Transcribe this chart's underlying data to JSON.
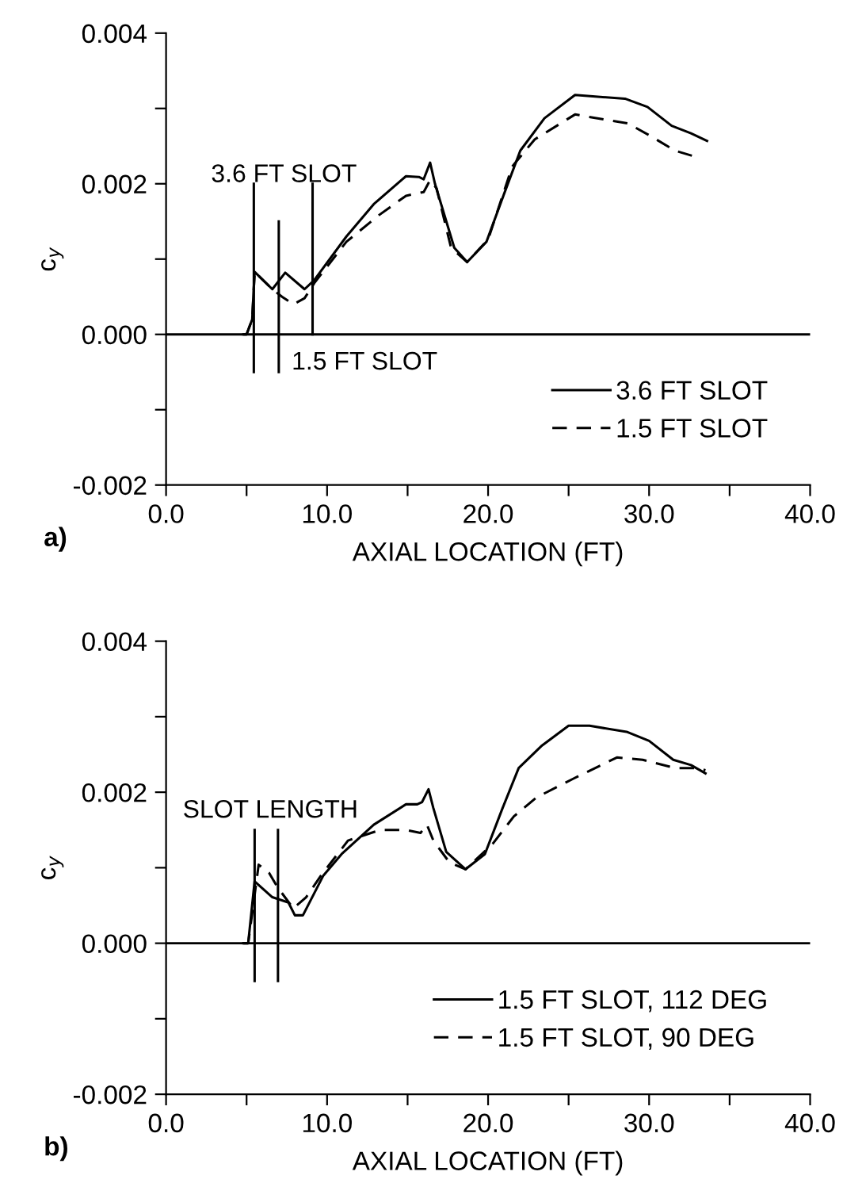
{
  "chart_data": [
    {
      "type": "line",
      "xlabel": "AXIAL LOCATION (FT)",
      "ylabel": "c$_{y}$",
      "xlim": [
        0,
        40
      ],
      "ylim": [
        -0.002,
        0.004
      ],
      "xticks": [
        {
          "value": 0,
          "label": "0.0"
        },
        {
          "value": 5,
          "label": null
        },
        {
          "value": 10,
          "label": "10.0"
        },
        {
          "value": 15,
          "label": null
        },
        {
          "value": 20,
          "label": "20.0"
        },
        {
          "value": 25,
          "label": null
        },
        {
          "value": 30,
          "label": "30.0"
        },
        {
          "value": 35,
          "label": null
        },
        {
          "value": 40,
          "label": "40.0"
        }
      ],
      "yticks": [
        {
          "value": -0.002,
          "label": "-0.002"
        },
        {
          "value": -0.001,
          "label": null
        },
        {
          "value": 0,
          "label": "0.000"
        },
        {
          "value": 0.001,
          "label": null
        },
        {
          "value": 0.002,
          "label": "0.002"
        },
        {
          "value": 0.003,
          "label": null
        },
        {
          "value": 0.004,
          "label": "0.004"
        }
      ],
      "legend": "bottom right",
      "grid": false,
      "ref_lines": [
        {
          "axis": "y",
          "value": 0,
          "label": null,
          "color": "#000000"
        }
      ],
      "series": [
        {
          "name": "3.6 FT SLOT",
          "color": "#000000",
          "line_style": "solid",
          "x": [
            4.8,
            5.0,
            5.35,
            5.5,
            6.6,
            7.4,
            8.6,
            9.2,
            11.2,
            12.9,
            14.9,
            15.7,
            16.0,
            16.4,
            16.7,
            17.9,
            18.7,
            19.9,
            21.0,
            22.0,
            23.5,
            25.4,
            26.5,
            28.5,
            29.9,
            31.4,
            32.6,
            33.6
          ],
          "values": [
            0,
            0,
            0.0002,
            0.00083,
            0.0006,
            0.00082,
            0.0006,
            0.00072,
            0.0013,
            0.00173,
            0.0021,
            0.00209,
            0.00206,
            0.00228,
            0.002,
            0.00115,
            0.00096,
            0.00123,
            0.00187,
            0.00244,
            0.00287,
            0.00318,
            0.00316,
            0.00313,
            0.00302,
            0.00277,
            0.00267,
            0.00257
          ]
        },
        {
          "name": "1.5 FT SLOT",
          "color": "#000000",
          "line_style": "dashed",
          "x": [
            4.8,
            5.0,
            5.35,
            5.5,
            6.6,
            7.2,
            7.9,
            8.6,
            9.2,
            11.2,
            13.2,
            14.9,
            16.0,
            16.4,
            16.8,
            17.7,
            18.7,
            20.0,
            21.5,
            22.9,
            25.4,
            27.6,
            28.7,
            30.2,
            31.6,
            32.7
          ],
          "values": [
            0,
            0,
            0.0002,
            0.00083,
            0.0006,
            0.0005,
            0.0004,
            0.00048,
            0.00068,
            0.00123,
            0.00158,
            0.00184,
            0.00189,
            0.00205,
            0.00194,
            0.00115,
            0.00096,
            0.00126,
            0.00223,
            0.00259,
            0.00292,
            0.00284,
            0.0028,
            0.00262,
            0.00244,
            0.00237
          ]
        },
        {
          "color": "#000000",
          "line_style": "solid",
          "x": [
            5.45,
            5.45
          ],
          "values": [
            -0.0005,
            0.002
          ]
        },
        {
          "color": "#000000",
          "line_style": "solid",
          "x": [
            7.0,
            7.0
          ],
          "values": [
            -0.0005,
            0.0015
          ]
        },
        {
          "color": "#000000",
          "line_style": "solid",
          "x": [
            9.1,
            9.1
          ],
          "values": [
            0,
            0.002
          ]
        }
      ],
      "annotations": [
        "3.6 FT SLOT",
        "1.5 FT SLOT",
        "a)"
      ]
    },
    {
      "type": "line",
      "xlabel": "AXIAL LOCATION (FT)",
      "ylabel": "c$_{y}$",
      "xlim": [
        0,
        40
      ],
      "ylim": [
        -0.002,
        0.004
      ],
      "xticks": [
        {
          "value": 0,
          "label": "0.0"
        },
        {
          "value": 5,
          "label": null
        },
        {
          "value": 10,
          "label": "10.0"
        },
        {
          "value": 15,
          "label": null
        },
        {
          "value": 20,
          "label": "20.0"
        },
        {
          "value": 25,
          "label": null
        },
        {
          "value": 30,
          "label": "30.0"
        },
        {
          "value": 35,
          "label": null
        },
        {
          "value": 40,
          "label": "40.0"
        }
      ],
      "yticks": [
        {
          "value": -0.002,
          "label": "-0.002"
        },
        {
          "value": -0.001,
          "label": null
        },
        {
          "value": 0,
          "label": "0.000"
        },
        {
          "value": 0.001,
          "label": null
        },
        {
          "value": 0.002,
          "label": "0.002"
        },
        {
          "value": 0.003,
          "label": null
        },
        {
          "value": 0.004,
          "label": "0.004"
        }
      ],
      "legend": "bottom right",
      "grid": false,
      "ref_lines": [
        {
          "axis": "y",
          "value": 0,
          "label": null,
          "color": "#000000"
        }
      ],
      "series": [
        {
          "name": "1.5 FT SLOT, 112 DEG",
          "color": "#000000",
          "line_style": "solid",
          "x": [
            4.8,
            5.1,
            5.5,
            6.6,
            7.6,
            8.0,
            8.5,
            9.75,
            10.9,
            12.9,
            14.9,
            15.6,
            15.9,
            16.3,
            16.6,
            17.4,
            18.6,
            19.8,
            20.9,
            21.9,
            23.3,
            25.0,
            26.3,
            28.6,
            30.0,
            31.5,
            32.6,
            33.5
          ],
          "values": [
            0,
            0,
            0.00082,
            0.00061,
            0.00054,
            0.00037,
            0.00037,
            0.00089,
            0.00118,
            0.00157,
            0.00184,
            0.00184,
            0.00187,
            0.00204,
            0.00179,
            0.00121,
            0.00098,
            0.00118,
            0.00179,
            0.00232,
            0.00261,
            0.00288,
            0.00288,
            0.0028,
            0.00268,
            0.00243,
            0.00236,
            0.00225
          ]
        },
        {
          "name": "1.5 FT SLOT, 90 DEG",
          "color": "#000000",
          "line_style": "dashed",
          "x": [
            4.8,
            5.1,
            5.75,
            6.4,
            6.9,
            7.9,
            8.7,
            9.6,
            11.3,
            13.3,
            14.9,
            15.8,
            16.2,
            16.6,
            17.6,
            18.6,
            20.3,
            21.6,
            23.0,
            25.3,
            28.0,
            29.6,
            31.6,
            33.0,
            33.5
          ],
          "values": [
            0,
            0,
            0.00104,
            0.00093,
            0.00075,
            0.00046,
            0.00061,
            0.00089,
            0.00136,
            0.0015,
            0.0015,
            0.00146,
            0.00157,
            0.00136,
            0.00107,
            0.00098,
            0.00132,
            0.00168,
            0.00193,
            0.00218,
            0.00246,
            0.00243,
            0.00232,
            0.00232,
            0.00229
          ]
        },
        {
          "color": "#000000",
          "line_style": "solid",
          "x": [
            5.5,
            5.5
          ],
          "values": [
            -0.0005,
            0.0015
          ]
        },
        {
          "color": "#000000",
          "line_style": "solid",
          "x": [
            6.95,
            6.95
          ],
          "values": [
            -0.0005,
            0.0015
          ]
        }
      ],
      "annotations": [
        "SLOT LENGTH",
        "b)"
      ]
    }
  ]
}
